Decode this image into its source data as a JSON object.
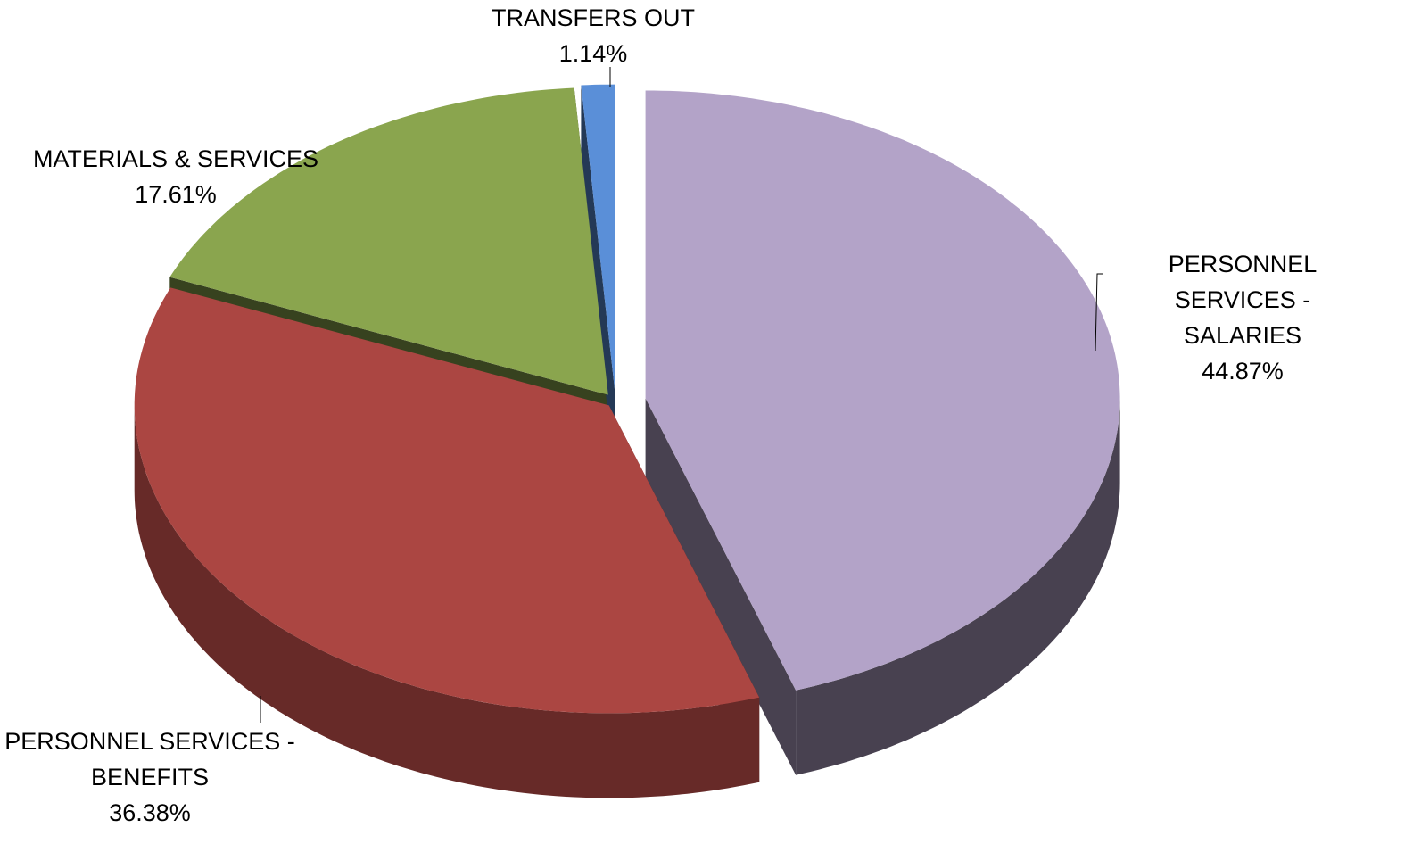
{
  "chart_data": {
    "type": "pie",
    "categories": [
      "PERSONNEL SERVICES - SALARIES",
      "PERSONNEL SERVICES - BENEFITS",
      "MATERIALS & SERVICES",
      "TRANSFERS OUT"
    ],
    "values": [
      44.87,
      36.38,
      17.61,
      1.14
    ],
    "value_labels": [
      "44.87%",
      "36.38%",
      "17.61%",
      "1.14%"
    ],
    "colors": [
      "#b3a3c8",
      "#ab4642",
      "#8aa54e",
      "#5a8fd8"
    ]
  }
}
